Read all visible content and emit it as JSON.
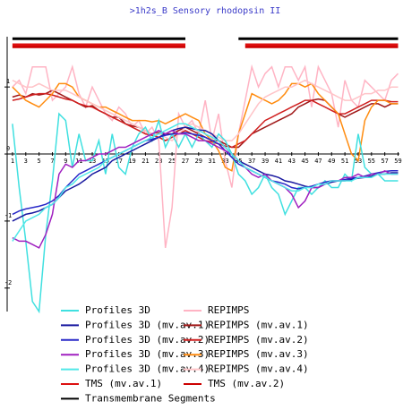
{
  "chart_data": {
    "type": "line",
    "title": ">1h2s_B Sensory rhodopsin II",
    "x": [
      1,
      2,
      3,
      4,
      5,
      6,
      7,
      8,
      9,
      10,
      11,
      12,
      13,
      14,
      15,
      16,
      17,
      18,
      19,
      20,
      21,
      22,
      23,
      24,
      25,
      26,
      27,
      28,
      29,
      30,
      31,
      32,
      33,
      34,
      35,
      36,
      37,
      38,
      39,
      40,
      41,
      42,
      43,
      44,
      45,
      46,
      47,
      48,
      49,
      50,
      51,
      52,
      53,
      54,
      55,
      56,
      57,
      58,
      59
    ],
    "xlim": [
      0.2,
      59.2
    ],
    "xticks": [
      1,
      3,
      5,
      7,
      9,
      11,
      13,
      15,
      17,
      19,
      21,
      23,
      25,
      27,
      29,
      31,
      33,
      35,
      37,
      39,
      41,
      43,
      45,
      47,
      49,
      51,
      53,
      55,
      57,
      59
    ],
    "ylim": [
      -2.35,
      1.75
    ],
    "yticks": [
      -2,
      -1,
      0,
      1
    ],
    "series": [
      {
        "name": "Profiles 3D",
        "color": "#40e0e0",
        "values": [
          0.45,
          -0.5,
          -1.3,
          -2.2,
          -2.35,
          -1.2,
          -0.4,
          0.6,
          0.5,
          -0.2,
          0.3,
          -0.1,
          -0.1,
          0.2,
          -0.3,
          0.3,
          -0.2,
          -0.3,
          0.1,
          0.3,
          0.4,
          0.2,
          0.5,
          0.1,
          0.3,
          0.1,
          0.3,
          0.1,
          0.3,
          0.2,
          0.1,
          0.3,
          0.2,
          0.0,
          -0.3,
          -0.4,
          -0.6,
          -0.5,
          -0.3,
          -0.5,
          -0.6,
          -0.9,
          -0.7,
          -0.5,
          -0.5,
          -0.6,
          -0.5,
          -0.4,
          -0.5,
          -0.5,
          -0.3,
          -0.4,
          0.3,
          -0.2,
          -0.3,
          -0.3,
          -0.4,
          -0.4,
          -0.4
        ]
      },
      {
        "name": "Profiles 3D (mv.av.1)",
        "color": "#1a1aa0",
        "values": [
          -1.0,
          -0.95,
          -0.9,
          -0.88,
          -0.85,
          -0.8,
          -0.75,
          -0.65,
          -0.55,
          -0.5,
          -0.45,
          -0.38,
          -0.3,
          -0.25,
          -0.2,
          -0.1,
          -0.05,
          0.0,
          0.05,
          0.1,
          0.15,
          0.2,
          0.25,
          0.3,
          0.35,
          0.38,
          0.4,
          0.38,
          0.36,
          0.35,
          0.3,
          0.2,
          0.1,
          0.0,
          -0.1,
          -0.15,
          -0.2,
          -0.25,
          -0.3,
          -0.32,
          -0.35,
          -0.4,
          -0.42,
          -0.45,
          -0.48,
          -0.5,
          -0.5,
          -0.45,
          -0.42,
          -0.4,
          -0.4,
          -0.38,
          -0.36,
          -0.35,
          -0.33,
          -0.3,
          -0.3,
          -0.28,
          -0.28
        ]
      },
      {
        "name": "Profiles 3D (mv.av.2)",
        "color": "#2828c8",
        "values": [
          -0.9,
          -0.85,
          -0.82,
          -0.8,
          -0.78,
          -0.75,
          -0.7,
          -0.62,
          -0.5,
          -0.4,
          -0.3,
          -0.25,
          -0.2,
          -0.15,
          -0.1,
          -0.05,
          0.0,
          0.05,
          0.1,
          0.15,
          0.2,
          0.22,
          0.25,
          0.28,
          0.3,
          0.3,
          0.32,
          0.3,
          0.28,
          0.25,
          0.2,
          0.15,
          0.05,
          -0.05,
          -0.15,
          -0.2,
          -0.25,
          -0.3,
          -0.35,
          -0.4,
          -0.42,
          -0.45,
          -0.5,
          -0.52,
          -0.5,
          -0.48,
          -0.45,
          -0.42,
          -0.4,
          -0.4,
          -0.38,
          -0.36,
          -0.35,
          -0.33,
          -0.3,
          -0.28,
          -0.26,
          -0.25,
          -0.25
        ]
      },
      {
        "name": "Profiles 3D (mv.av.3)",
        "color": "#a020c0",
        "values": [
          -1.25,
          -1.3,
          -1.3,
          -1.35,
          -1.4,
          -1.2,
          -0.9,
          -0.3,
          -0.15,
          -0.2,
          -0.1,
          -0.1,
          -0.05,
          0.0,
          0.0,
          0.05,
          0.1,
          0.1,
          0.15,
          0.2,
          0.25,
          0.3,
          0.35,
          0.3,
          0.35,
          0.3,
          0.3,
          0.25,
          0.2,
          0.2,
          0.15,
          0.1,
          0.05,
          0.0,
          -0.1,
          -0.2,
          -0.3,
          -0.35,
          -0.3,
          -0.4,
          -0.45,
          -0.5,
          -0.6,
          -0.8,
          -0.7,
          -0.5,
          -0.5,
          -0.45,
          -0.4,
          -0.4,
          -0.35,
          -0.35,
          -0.3,
          -0.35,
          -0.3,
          -0.3,
          -0.25,
          -0.3,
          -0.3
        ]
      },
      {
        "name": "Profiles 3D (mv.av.4)",
        "color": "#50e8e8",
        "values": [
          -1.3,
          -1.15,
          -1.0,
          -0.95,
          -0.9,
          -0.8,
          -0.75,
          -0.65,
          -0.5,
          -0.45,
          -0.35,
          -0.3,
          -0.25,
          -0.2,
          -0.1,
          -0.05,
          0.0,
          0.05,
          0.1,
          0.15,
          0.2,
          0.25,
          0.3,
          0.35,
          0.4,
          0.45,
          0.45,
          0.4,
          0.35,
          0.3,
          0.25,
          0.2,
          0.1,
          0.0,
          -0.1,
          -0.2,
          -0.25,
          -0.3,
          -0.35,
          -0.4,
          -0.45,
          -0.5,
          -0.55,
          -0.55,
          -0.5,
          -0.5,
          -0.45,
          -0.45,
          -0.4,
          -0.4,
          -0.4,
          -0.4,
          -0.35,
          -0.35,
          -0.35,
          -0.3,
          -0.3,
          -0.3,
          -0.3
        ]
      },
      {
        "name": "REPIMPS",
        "color": "#ffb4c4",
        "values": [
          1.0,
          1.1,
          0.9,
          1.3,
          1.3,
          1.3,
          0.8,
          0.9,
          1.0,
          1.3,
          0.9,
          0.7,
          1.0,
          0.8,
          0.6,
          0.5,
          0.7,
          0.6,
          0.4,
          0.5,
          0.3,
          0.4,
          0.2,
          -1.4,
          -0.8,
          0.6,
          0.4,
          0.5,
          0.3,
          0.8,
          0.2,
          0.6,
          -0.1,
          -0.5,
          0.3,
          0.8,
          1.3,
          1.0,
          1.2,
          1.3,
          1.0,
          1.3,
          1.3,
          1.1,
          1.3,
          0.7,
          1.3,
          1.1,
          0.9,
          0.4,
          1.1,
          0.8,
          0.7,
          1.1,
          1.0,
          0.9,
          0.8,
          1.1,
          1.2
        ]
      },
      {
        "name": "REPIMPS (mv.av.1)",
        "color": "#a01818",
        "values": [
          0.85,
          0.88,
          0.85,
          0.9,
          0.88,
          0.9,
          0.95,
          0.9,
          0.85,
          0.8,
          0.75,
          0.7,
          0.72,
          0.65,
          0.6,
          0.55,
          0.55,
          0.45,
          0.42,
          0.4,
          0.35,
          0.3,
          0.32,
          0.3,
          0.3,
          0.35,
          0.4,
          0.35,
          0.3,
          0.25,
          0.2,
          0.2,
          0.15,
          0.1,
          0.1,
          0.2,
          0.3,
          0.35,
          0.4,
          0.45,
          0.5,
          0.55,
          0.6,
          0.7,
          0.75,
          0.8,
          0.82,
          0.8,
          0.7,
          0.6,
          0.55,
          0.6,
          0.65,
          0.7,
          0.75,
          0.75,
          0.7,
          0.75,
          0.75
        ]
      },
      {
        "name": "REPIMPS (mv.av.2)",
        "color": "#d02020",
        "values": [
          0.8,
          0.82,
          0.85,
          0.88,
          0.9,
          0.9,
          0.88,
          0.85,
          0.82,
          0.8,
          0.75,
          0.72,
          0.7,
          0.65,
          0.6,
          0.55,
          0.5,
          0.45,
          0.4,
          0.35,
          0.3,
          0.28,
          0.25,
          0.2,
          0.25,
          0.3,
          0.35,
          0.3,
          0.25,
          0.2,
          0.18,
          0.15,
          0.12,
          0.1,
          0.15,
          0.2,
          0.3,
          0.4,
          0.5,
          0.55,
          0.6,
          0.65,
          0.7,
          0.75,
          0.8,
          0.8,
          0.75,
          0.7,
          0.65,
          0.6,
          0.6,
          0.65,
          0.7,
          0.75,
          0.8,
          0.8,
          0.8,
          0.78,
          0.78
        ]
      },
      {
        "name": "REPIMPS (mv.av.3)",
        "color": "#ff8c10",
        "values": [
          1.0,
          0.9,
          0.8,
          0.75,
          0.7,
          0.8,
          0.9,
          1.05,
          1.05,
          1.0,
          0.85,
          0.8,
          0.75,
          0.7,
          0.7,
          0.65,
          0.6,
          0.55,
          0.5,
          0.5,
          0.5,
          0.48,
          0.5,
          0.45,
          0.5,
          0.55,
          0.6,
          0.55,
          0.5,
          0.3,
          0.2,
          0.05,
          -0.2,
          -0.25,
          0.3,
          0.6,
          0.9,
          0.85,
          0.8,
          0.75,
          0.8,
          0.9,
          1.05,
          1.05,
          1.0,
          1.05,
          0.9,
          0.8,
          0.7,
          0.6,
          0.3,
          0.0,
          -0.1,
          0.5,
          0.7,
          0.8,
          0.8,
          0.75,
          0.75
        ]
      },
      {
        "name": "REPIMPS (mv.av.4)",
        "color": "#ffc4c8",
        "values": [
          1.1,
          1.05,
          1.0,
          1.0,
          1.05,
          1.0,
          0.95,
          0.95,
          0.95,
          0.9,
          0.85,
          0.8,
          0.75,
          0.7,
          0.65,
          0.6,
          0.55,
          0.5,
          0.45,
          0.4,
          0.35,
          0.3,
          0.3,
          0.25,
          0.2,
          0.3,
          0.4,
          0.45,
          0.4,
          0.35,
          0.3,
          0.25,
          0.2,
          0.2,
          0.3,
          0.45,
          0.6,
          0.75,
          0.85,
          0.9,
          0.95,
          1.0,
          1.0,
          1.05,
          1.1,
          1.05,
          1.0,
          0.95,
          0.9,
          0.85,
          0.8,
          0.8,
          0.85,
          0.9,
          0.9,
          0.95,
          0.95,
          1.0,
          1.0
        ]
      },
      {
        "name": "TMS (mv.av.1)",
        "color": "#dd1010",
        "values": [
          1.63,
          1.63,
          1.63,
          1.63,
          1.63,
          1.63,
          1.63,
          1.63,
          1.63,
          1.63,
          1.63,
          1.63,
          1.63,
          1.63,
          1.63,
          1.63,
          1.63,
          1.63,
          1.63,
          1.63,
          1.63,
          1.63,
          1.63,
          1.63,
          1.63,
          1.63,
          1.63,
          null,
          null,
          null,
          null,
          null,
          null,
          null,
          null,
          1.63,
          1.63,
          1.63,
          1.63,
          1.63,
          1.63,
          1.63,
          1.63,
          1.63,
          1.63,
          1.63,
          1.63,
          1.63,
          1.63,
          1.63,
          1.63,
          1.63,
          1.63,
          1.63,
          1.63,
          1.63,
          1.63,
          1.63,
          1.63
        ]
      },
      {
        "name": "TMS (mv.av.2)",
        "color": "#cc0000",
        "values": [
          1.6,
          1.6,
          1.6,
          1.6,
          1.6,
          1.6,
          1.6,
          1.6,
          1.6,
          1.6,
          1.6,
          1.6,
          1.6,
          1.6,
          1.6,
          1.6,
          1.6,
          1.6,
          1.6,
          1.6,
          1.6,
          1.6,
          1.6,
          1.6,
          1.6,
          1.6,
          1.6,
          null,
          null,
          null,
          null,
          null,
          null,
          null,
          null,
          1.6,
          1.6,
          1.6,
          1.6,
          1.6,
          1.6,
          1.6,
          1.6,
          1.6,
          1.6,
          1.6,
          1.6,
          1.6,
          1.6,
          1.6,
          1.6,
          1.6,
          1.6,
          1.6,
          1.6,
          1.6,
          1.6,
          1.6,
          1.6
        ]
      },
      {
        "name": "Transmembrane Segments",
        "color": "#000000",
        "values": [
          1.72,
          1.72,
          1.72,
          1.72,
          1.72,
          1.72,
          1.72,
          1.72,
          1.72,
          1.72,
          1.72,
          1.72,
          1.72,
          1.72,
          1.72,
          1.72,
          1.72,
          1.72,
          1.72,
          1.72,
          1.72,
          1.72,
          1.72,
          1.72,
          1.72,
          1.72,
          1.72,
          null,
          null,
          null,
          null,
          null,
          null,
          null,
          1.72,
          1.72,
          1.72,
          1.72,
          1.72,
          1.72,
          1.72,
          1.72,
          1.72,
          1.72,
          1.72,
          1.72,
          1.72,
          1.72,
          1.72,
          1.72,
          1.72,
          1.72,
          1.72,
          1.72,
          1.72,
          1.72,
          1.72,
          1.72,
          1.72
        ]
      }
    ]
  }
}
